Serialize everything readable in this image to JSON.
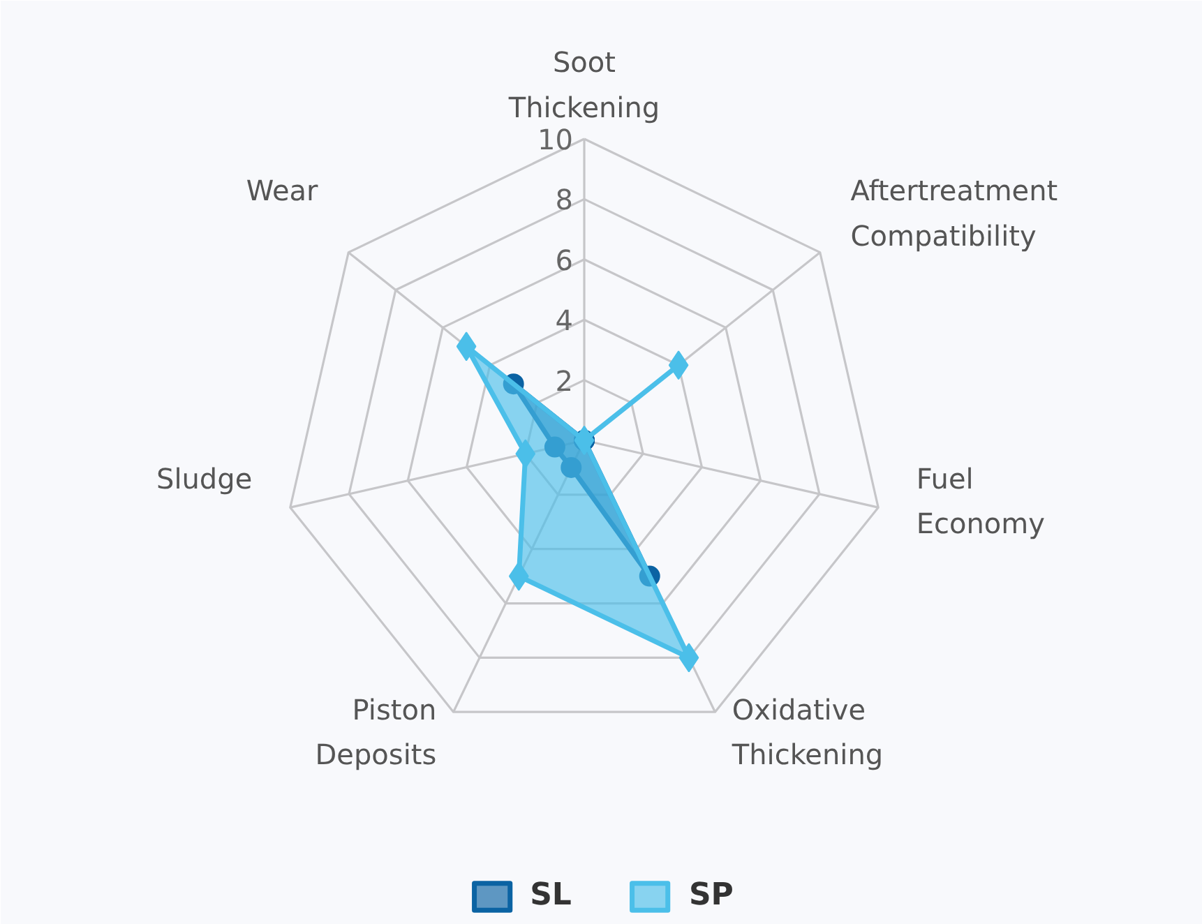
{
  "chart_data": {
    "type": "radar",
    "categories": [
      "Soot Thickening",
      "Aftertreatment Compatibility",
      "Fuel Economy",
      "Oxidative Thickening",
      "Piston Deposits",
      "Sludge",
      "Wear"
    ],
    "series": [
      {
        "name": "SL",
        "color": "#0b63a3",
        "marker": "circle",
        "values": [
          0,
          0,
          0,
          5,
          1,
          1,
          3
        ]
      },
      {
        "name": "SP",
        "color": "#4bbfe9",
        "marker": "diamond",
        "values": [
          0,
          4,
          0,
          8,
          5,
          2,
          5
        ]
      }
    ],
    "ylim": [
      0,
      10
    ],
    "yticks": [
      2,
      4,
      6,
      8,
      10
    ],
    "grid": true,
    "legend": "bottom"
  }
}
